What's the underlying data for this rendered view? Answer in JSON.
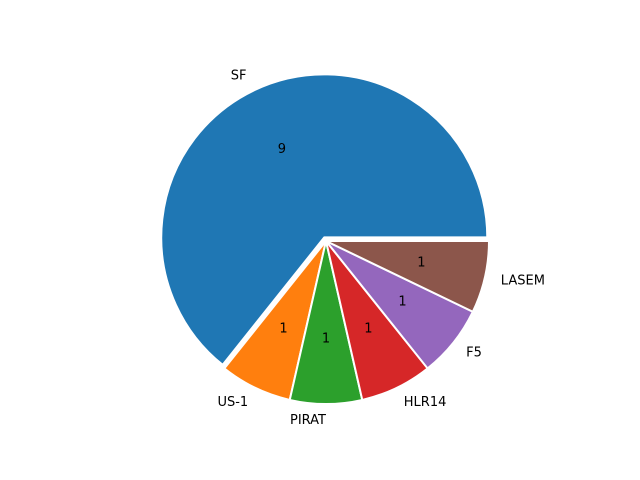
{
  "chart_data": {
    "type": "pie",
    "categories": [
      "SF",
      "US-1",
      "PIRAT",
      "HLR14",
      "F5",
      "LASEM"
    ],
    "values": [
      9,
      1,
      1,
      1,
      1,
      1
    ],
    "colors": [
      "#1f77b4",
      "#ff7f0e",
      "#2ca02c",
      "#d62728",
      "#9467bd",
      "#8c564b"
    ]
  }
}
